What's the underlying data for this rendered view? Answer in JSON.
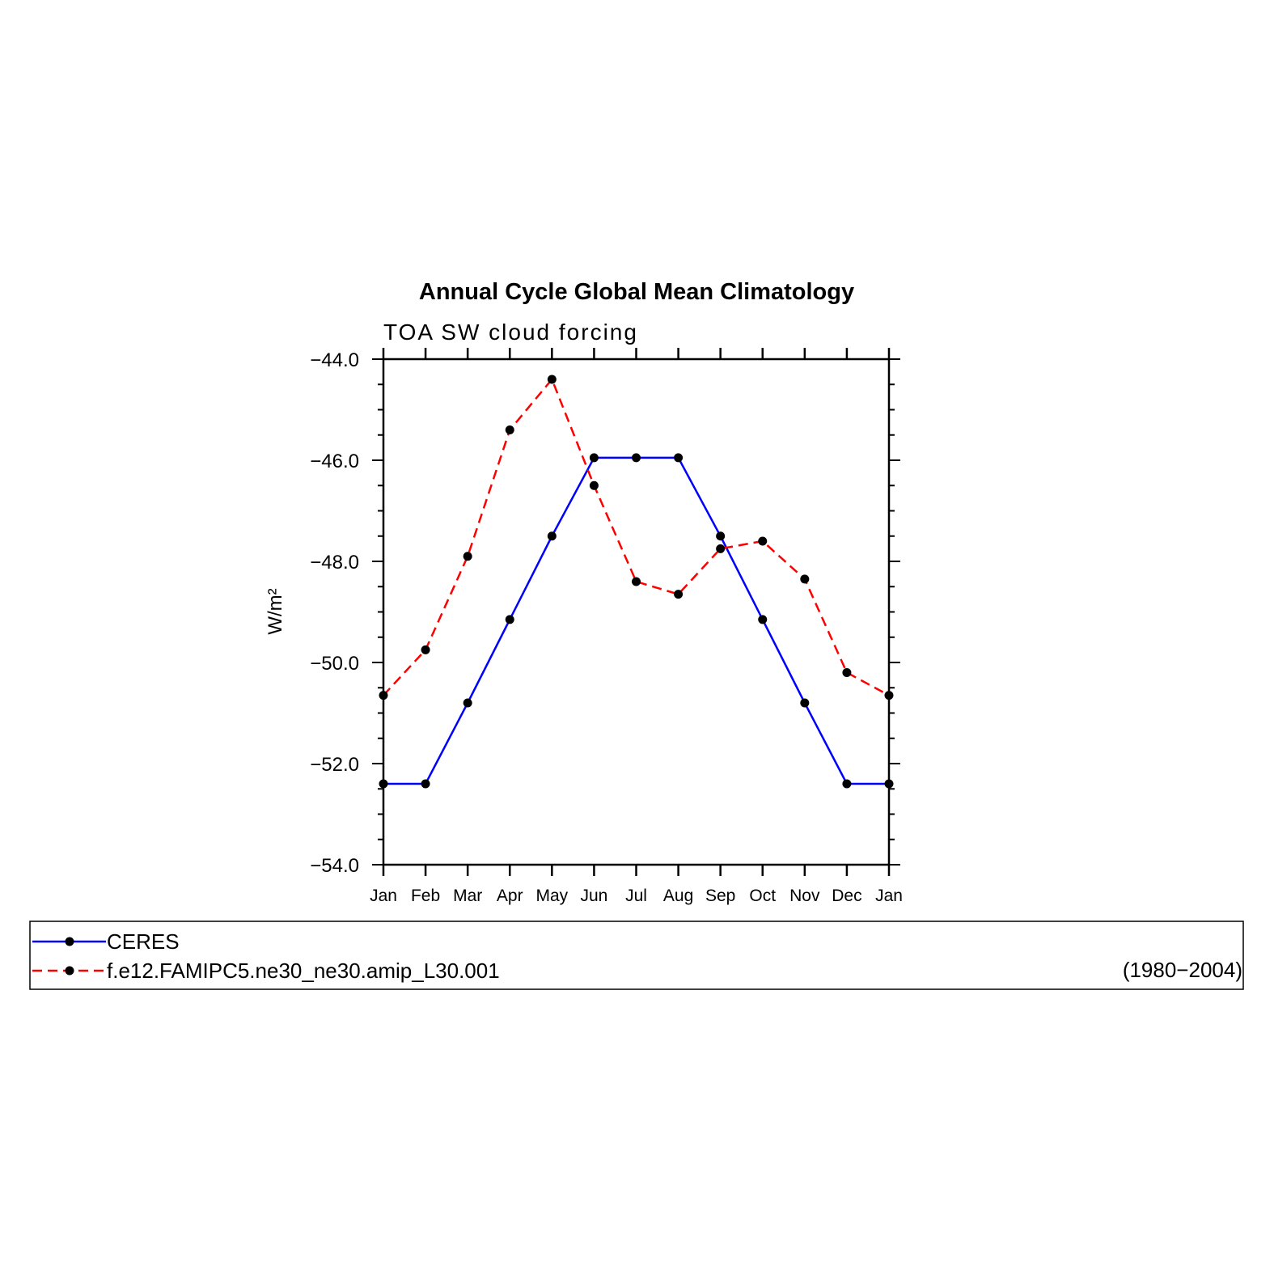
{
  "chart_data": {
    "type": "line",
    "title": "Annual Cycle Global Mean Climatology",
    "subtitle": "TOA SW cloud forcing",
    "ylabel": "W/m²",
    "xlabel": "",
    "categories": [
      "Jan",
      "Feb",
      "Mar",
      "Apr",
      "May",
      "Jun",
      "Jul",
      "Aug",
      "Sep",
      "Oct",
      "Nov",
      "Dec",
      "Jan"
    ],
    "ylim": [
      -54.0,
      -44.0
    ],
    "yticks": [
      "-44.0",
      "-46.0",
      "-48.0",
      "-50.0",
      "-52.0",
      "-54.0"
    ],
    "series": [
      {
        "name": "CERES",
        "color": "#0000ff",
        "line_style": "solid",
        "marker": "circle",
        "values": [
          -52.4,
          -52.4,
          -50.8,
          -49.15,
          -47.5,
          -45.95,
          -45.95,
          -45.95,
          -47.5,
          -49.15,
          -50.8,
          -52.4,
          -52.4
        ]
      },
      {
        "name": "f.e12.FAMIPC5.ne30_ne30.amip_L30.001",
        "color": "#ff0000",
        "line_style": "dashed",
        "marker": "circle",
        "values": [
          -50.65,
          -49.75,
          -47.9,
          -45.4,
          -44.4,
          -46.5,
          -48.4,
          -48.65,
          -47.75,
          -47.6,
          -48.35,
          -50.2,
          -50.65
        ]
      }
    ],
    "grid": false,
    "legend_position": "bottom"
  },
  "legend": {
    "period": "(1980−2004)"
  },
  "colors": {
    "marker": "#000000",
    "axis": "#000000"
  }
}
